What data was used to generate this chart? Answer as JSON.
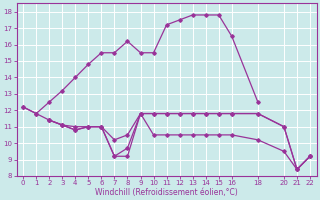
{
  "xlabel": "Windchill (Refroidissement éolien,°C)",
  "bg_color": "#cceaea",
  "line_color": "#993399",
  "grid_color": "#ffffff",
  "xlim": [
    -0.5,
    22.5
  ],
  "ylim": [
    8,
    18.5
  ],
  "xticks": [
    0,
    1,
    2,
    3,
    4,
    5,
    6,
    7,
    8,
    9,
    10,
    11,
    12,
    13,
    14,
    15,
    16,
    18,
    20,
    21,
    22
  ],
  "yticks": [
    8,
    9,
    10,
    11,
    12,
    13,
    14,
    15,
    16,
    17,
    18
  ],
  "line1_x": [
    0,
    1,
    2,
    3,
    4,
    5,
    6,
    7,
    8,
    9,
    10,
    11,
    12,
    13,
    14,
    15,
    16,
    18
  ],
  "line1_y": [
    12.2,
    11.8,
    12.5,
    13.2,
    14.0,
    14.8,
    15.5,
    15.5,
    16.2,
    15.5,
    15.5,
    17.2,
    17.5,
    17.8,
    17.8,
    17.8,
    16.5,
    12.5
  ],
  "line2_x": [
    0,
    1,
    2,
    3,
    4,
    5,
    6,
    7,
    8,
    9,
    10,
    11,
    12,
    13,
    14,
    15,
    16,
    18,
    20,
    21,
    22
  ],
  "line2_y": [
    12.2,
    11.8,
    11.4,
    11.1,
    10.8,
    11.0,
    11.0,
    9.2,
    9.7,
    11.8,
    11.8,
    11.8,
    11.8,
    11.8,
    11.8,
    11.8,
    11.8,
    11.8,
    11.0,
    8.4,
    9.2
  ],
  "line3_x": [
    2,
    3,
    4,
    5,
    6,
    7,
    8,
    9,
    10,
    11,
    12,
    13,
    14,
    15,
    16,
    18,
    20,
    21,
    22
  ],
  "line3_y": [
    11.4,
    11.1,
    10.8,
    11.0,
    11.0,
    10.2,
    10.5,
    11.8,
    10.5,
    10.5,
    10.5,
    10.5,
    10.5,
    10.5,
    10.5,
    10.2,
    9.5,
    8.4,
    9.2
  ],
  "line4_x": [
    2,
    3,
    4,
    5,
    6,
    7,
    8,
    9,
    10,
    11,
    12,
    13,
    14,
    15,
    16,
    18,
    20,
    21,
    22
  ],
  "line4_y": [
    11.4,
    11.1,
    11.0,
    11.0,
    11.0,
    9.2,
    9.2,
    11.8,
    11.8,
    11.8,
    11.8,
    11.8,
    11.8,
    11.8,
    11.8,
    11.8,
    11.0,
    8.4,
    9.2
  ]
}
